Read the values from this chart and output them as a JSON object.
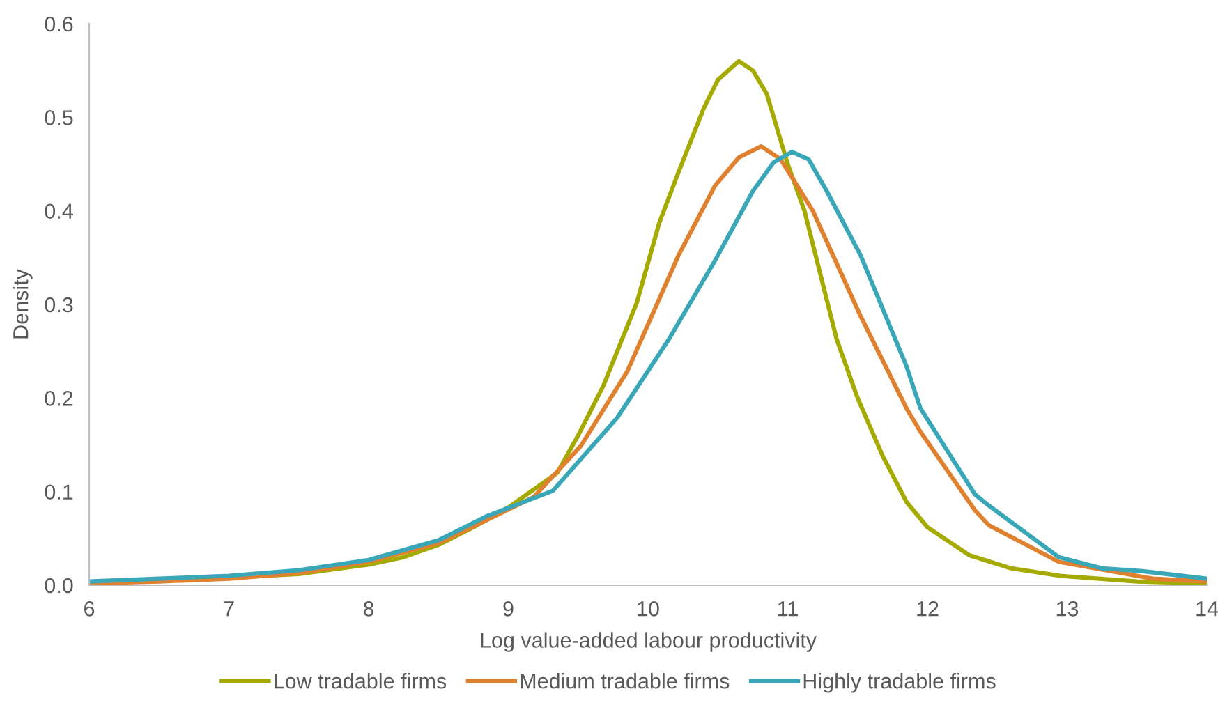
{
  "chart_data": {
    "type": "line",
    "xlabel": "Log value-added labour productivity",
    "ylabel": "Density",
    "xlim": [
      6,
      14
    ],
    "xticks": [
      6,
      7,
      8,
      9,
      10,
      11,
      12,
      13,
      14
    ],
    "ylim": [
      0,
      0.6
    ],
    "yticks": [
      {
        "value": 0,
        "label": "0.0"
      },
      0.1,
      0.2,
      0.3,
      0.4,
      0.5,
      0.6
    ],
    "grid": false,
    "legend": "bottom",
    "marker": "none",
    "line_style": "solid",
    "series": [
      {
        "name": "Low tradable firms",
        "color": "#a5aa00",
        "x": [
          6,
          6.5,
          7,
          7.5,
          8,
          8.25,
          8.5,
          8.75,
          9,
          9.35,
          9.5,
          9.68,
          9.92,
          10.08,
          10.22,
          10.4,
          10.5,
          10.65,
          10.75,
          10.85,
          11,
          11.12,
          11.35,
          11.5,
          11.68,
          11.85,
          12,
          12.3,
          12.6,
          12.95,
          13.5,
          14
        ],
        "values": [
          0.003,
          0.005,
          0.008,
          0.012,
          0.022,
          0.03,
          0.043,
          0.062,
          0.083,
          0.12,
          0.16,
          0.213,
          0.302,
          0.387,
          0.442,
          0.51,
          0.54,
          0.56,
          0.55,
          0.525,
          0.45,
          0.4,
          0.263,
          0.2,
          0.138,
          0.089,
          0.062,
          0.032,
          0.018,
          0.01,
          0.004,
          0.002
        ]
      },
      {
        "name": "Medium tradable firms",
        "color": "#e0812f",
        "x": [
          6,
          6.5,
          7,
          7.5,
          8,
          8.5,
          8.85,
          9.18,
          9.52,
          9.85,
          10.22,
          10.48,
          10.65,
          10.81,
          10.95,
          11.18,
          11.52,
          11.85,
          11.95,
          12.34,
          12.44,
          12.94,
          13.61,
          14
        ],
        "values": [
          0.002,
          0.004,
          0.007,
          0.013,
          0.025,
          0.045,
          0.07,
          0.094,
          0.149,
          0.228,
          0.353,
          0.427,
          0.457,
          0.469,
          0.455,
          0.4,
          0.288,
          0.189,
          0.164,
          0.08,
          0.064,
          0.025,
          0.007,
          0.004
        ]
      },
      {
        "name": "Highly tradable firms",
        "color": "#3aa7b8",
        "x": [
          6,
          6.5,
          7,
          7.5,
          8,
          8.5,
          8.85,
          9.32,
          9.78,
          10.15,
          10.48,
          10.75,
          10.9,
          11.03,
          11.15,
          11.28,
          11.52,
          11.85,
          11.95,
          12.34,
          12.44,
          12.94,
          13.25,
          13.54,
          14
        ],
        "values": [
          0.004,
          0.007,
          0.01,
          0.016,
          0.027,
          0.048,
          0.074,
          0.101,
          0.179,
          0.263,
          0.347,
          0.421,
          0.452,
          0.463,
          0.455,
          0.421,
          0.353,
          0.234,
          0.189,
          0.097,
          0.085,
          0.03,
          0.018,
          0.015,
          0.007
        ]
      }
    ]
  }
}
